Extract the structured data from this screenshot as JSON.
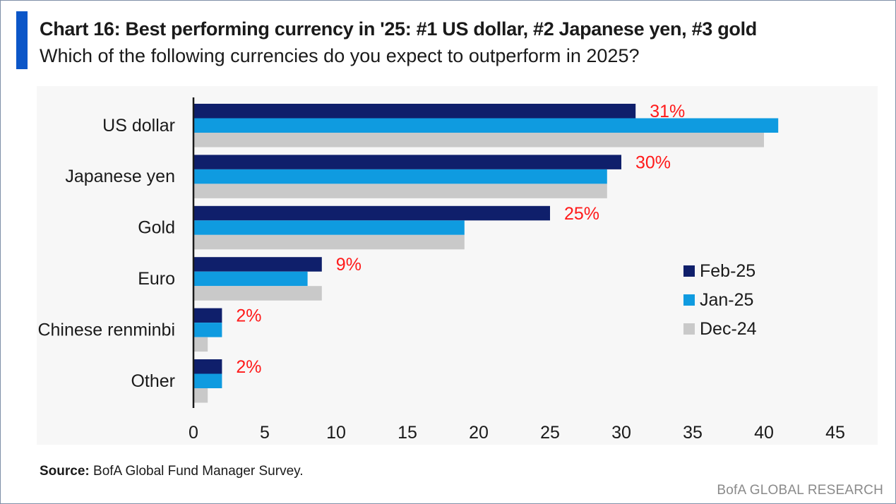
{
  "header": {
    "title": "Chart 16: Best performing currency in '25: #1 US dollar, #2 Japanese yen, #3 gold",
    "subtitle": "Which of the following currencies do you expect to outperform in 2025?"
  },
  "footer": {
    "source_label": "Source:",
    "source_text": " BofA Global Fund Manager Survey.",
    "brand": "BofA GLOBAL RESEARCH"
  },
  "colors": {
    "accent": "#0b56c8",
    "feb": "#0f1f6b",
    "jan": "#0f9be0",
    "dec": "#c9c9c9",
    "highlight": "#ff1a1a"
  },
  "chart_data": {
    "type": "bar",
    "orientation": "horizontal",
    "categories": [
      "US dollar",
      "Japanese yen",
      "Gold",
      "Euro",
      "Chinese renminbi",
      "Other"
    ],
    "series": [
      {
        "name": "Feb-25",
        "values": [
          31,
          30,
          25,
          9,
          2,
          2
        ]
      },
      {
        "name": "Jan-25",
        "values": [
          41,
          29,
          19,
          8,
          2,
          2
        ]
      },
      {
        "name": "Dec-24",
        "values": [
          40,
          29,
          19,
          9,
          1,
          1
        ]
      }
    ],
    "data_labels": [
      "31%",
      "30%",
      "25%",
      "9%",
      "2%",
      "2%"
    ],
    "xticks": [
      0,
      5,
      10,
      15,
      20,
      25,
      30,
      35,
      40,
      45
    ],
    "xlim": [
      0,
      45
    ],
    "legend_position": "right"
  }
}
